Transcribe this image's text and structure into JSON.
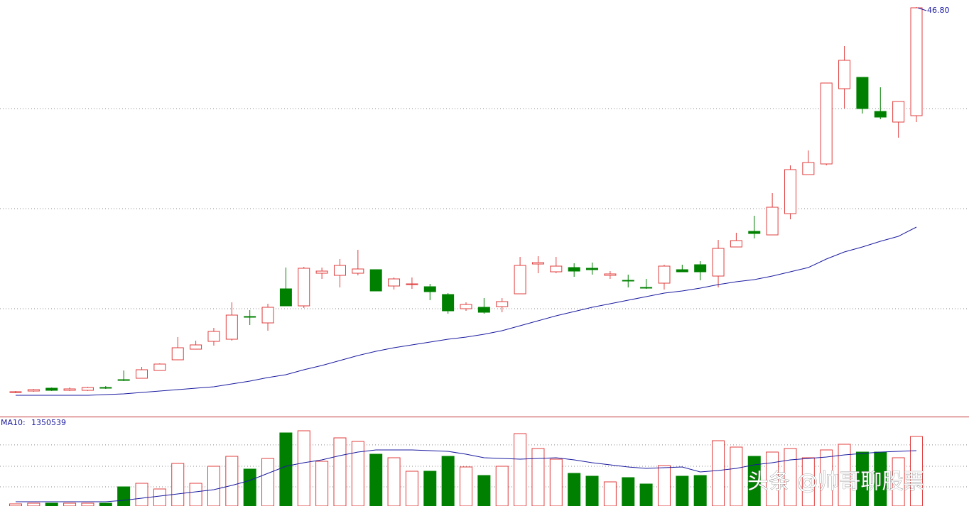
{
  "chart_data": [
    {
      "type": "candlestick",
      "up_color": "#e03c3c",
      "down_color": "#008000",
      "ma_color": "#1a1aa0",
      "ylim": [
        6.41,
        47.5
      ],
      "grid_lines": [
        36.79,
        26.92,
        17.05
      ],
      "grid": true,
      "max_label": "46.80",
      "open": [
        8.79,
        8.93,
        9.21,
        9.0,
        9.0,
        9.28,
        10.05,
        10.19,
        10.96,
        12.01,
        13.06,
        13.83,
        14.04,
        16.28,
        15.65,
        19.01,
        17.33,
        20.55,
        20.34,
        20.55,
        20.9,
        19.29,
        19.43,
        19.22,
        18.45,
        17.05,
        17.19,
        17.26,
        18.52,
        21.46,
        20.69,
        21.11,
        21.04,
        20.34,
        19.85,
        19.15,
        19.57,
        20.9,
        21.39,
        20.27,
        23.14,
        24.68,
        24.33,
        26.43,
        30.28,
        31.33,
        38.75,
        39.87,
        36.51,
        35.46,
        36.09
      ],
      "close": [
        8.86,
        9.07,
        9.0,
        9.14,
        9.28,
        9.21,
        9.98,
        11.03,
        11.59,
        13.2,
        13.48,
        14.81,
        16.42,
        16.21,
        17.19,
        17.33,
        21.04,
        20.76,
        21.32,
        20.97,
        18.8,
        19.99,
        19.5,
        18.73,
        16.84,
        17.47,
        16.7,
        17.75,
        21.32,
        21.6,
        21.25,
        20.76,
        20.9,
        20.48,
        19.78,
        19.08,
        21.25,
        20.69,
        20.69,
        23.0,
        23.77,
        24.47,
        27.06,
        30.77,
        31.47,
        39.31,
        41.55,
        36.79,
        35.95,
        37.49,
        46.73
      ],
      "high": [
        8.93,
        9.14,
        9.28,
        9.28,
        9.35,
        9.42,
        10.96,
        11.31,
        11.66,
        14.25,
        13.9,
        15.16,
        17.68,
        16.91,
        17.54,
        21.11,
        21.18,
        21.11,
        21.95,
        22.86,
        20.9,
        20.13,
        20.13,
        19.5,
        18.59,
        17.68,
        18.1,
        18.1,
        22.16,
        22.23,
        22.16,
        21.53,
        21.6,
        20.76,
        20.41,
        19.99,
        21.39,
        21.39,
        21.74,
        23.84,
        24.54,
        26.22,
        28.46,
        31.19,
        32.66,
        39.31,
        42.95,
        39.87,
        38.89,
        37.49,
        46.8
      ],
      "low": [
        8.72,
        8.86,
        8.93,
        8.93,
        8.93,
        9.14,
        9.91,
        10.19,
        10.96,
        12.01,
        13.06,
        13.41,
        13.9,
        15.44,
        14.88,
        17.33,
        17.12,
        19.99,
        19.15,
        20.34,
        18.8,
        18.94,
        19.01,
        17.89,
        16.56,
        16.84,
        16.56,
        16.7,
        18.52,
        20.55,
        20.55,
        20.2,
        20.41,
        19.99,
        19.15,
        19.01,
        18.94,
        20.69,
        19.85,
        19.15,
        23.14,
        23.98,
        24.33,
        25.87,
        30.28,
        31.19,
        36.79,
        36.3,
        35.74,
        33.92,
        35.46
      ],
      "ma": [
        8.51,
        8.51,
        8.51,
        8.51,
        8.51,
        8.58,
        8.65,
        8.79,
        8.93,
        9.07,
        9.21,
        9.35,
        9.63,
        9.91,
        10.26,
        10.54,
        11.03,
        11.45,
        11.94,
        12.43,
        12.85,
        13.2,
        13.48,
        13.76,
        14.04,
        14.25,
        14.53,
        14.88,
        15.37,
        15.86,
        16.35,
        16.77,
        17.19,
        17.54,
        17.89,
        18.24,
        18.59,
        18.8,
        19.08,
        19.43,
        19.71,
        19.92,
        20.27,
        20.69,
        21.11,
        21.95,
        22.65,
        23.14,
        23.7,
        24.19,
        25.1
      ]
    },
    {
      "type": "volume",
      "ylim": [
        0,
        2164000
      ],
      "grid_lines": [
        1490000,
        970000,
        467000
      ],
      "grid": true,
      "ma_name": "MA10:",
      "values": [
        51936,
        69248,
        69248,
        69248,
        69248,
        69248,
        467424,
        553984,
        415488,
        1038720,
        553984,
        969472,
        1211840,
        900224,
        1159904,
        1783136,
        1835072,
        1090656,
        1661952,
        1575392,
        1263776,
        1177216,
        848288,
        848288,
        1211840,
        952160,
        744416,
        969472,
        1765824,
        1402272,
        1142592,
        796352,
        727104,
        588608,
        692480,
        536672,
        986784,
        727104,
        744416,
        1592704,
        1436896,
        1211840,
        1315712,
        1402272,
        1177216,
        1367648,
        1506144,
        1315712,
        1315712,
        1177216,
        1696576
      ],
      "ma": [
        103872,
        103872,
        103872,
        103872,
        103872,
        103872,
        138496,
        190432,
        242368,
        294304,
        346240,
        398176,
        502048,
        623232,
        796352,
        969472,
        1056032,
        1125280,
        1229152,
        1315712,
        1367648,
        1367648,
        1367648,
        1350336,
        1333024,
        1263776,
        1177216,
        1159904,
        1142592,
        1159904,
        1177216,
        1125280,
        1056032,
        1004096,
        952160,
        917536,
        934848,
        952160,
        830976,
        865600,
        917536,
        1004096,
        1056032,
        1125280,
        1159904,
        1194528,
        1246464,
        1281088,
        1315712,
        1333024,
        1350539
      ]
    }
  ],
  "watermark": "头条 @帅哥聊股票"
}
